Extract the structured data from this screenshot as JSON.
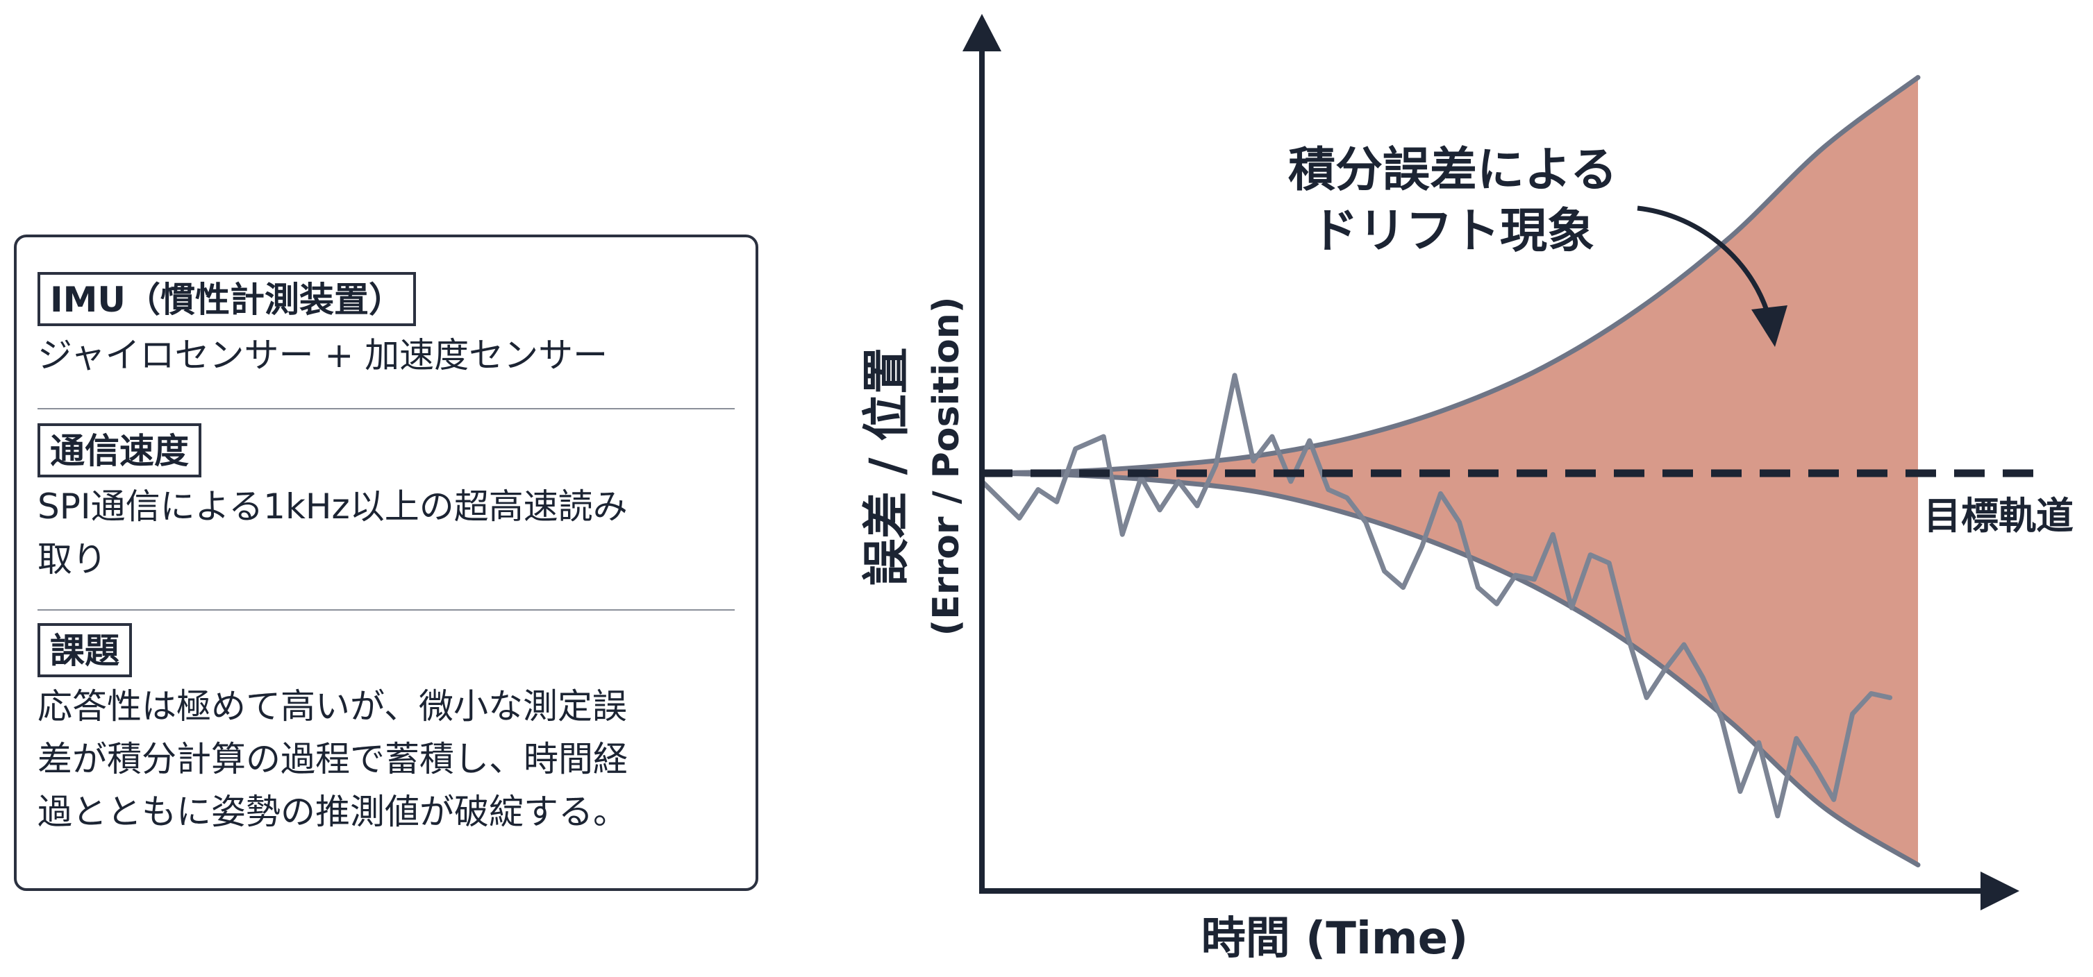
{
  "info_card": {
    "sections": [
      {
        "title": "IMU（慣性計測装置）",
        "body": [
          "ジャイロセンサー + 加速度センサー"
        ]
      },
      {
        "title": "通信速度",
        "body": [
          "SPI通信による1kHz以上の超高速読み",
          "取り"
        ]
      },
      {
        "title": "課題",
        "body": [
          "応答性は極めて高いが、微小な測定誤",
          "差が積分計算の過程で蓄積し、時間経",
          "過とともに姿勢の推測値が破綻する。"
        ]
      }
    ]
  },
  "chart_data": {
    "type": "line",
    "y_label_ja": "誤差 / 位置",
    "y_label_en": "(Error / Position)",
    "x_label": "時間 (Time)",
    "annotation": [
      "積分誤差による",
      "ドリフト現象"
    ],
    "reference_line_label": "目標軌道",
    "reference_value": 0,
    "colors": {
      "drift_fill": "#d89a8a",
      "envelope": "#6e7586",
      "noisy_signal": "#7c8494",
      "axis": "#1c2433",
      "reference": "#1c2433"
    },
    "xlim": [
      0,
      100
    ],
    "ylim": [
      -100,
      100
    ],
    "envelope_upper": [
      [
        0,
        0
      ],
      [
        10,
        0.5
      ],
      [
        20,
        2
      ],
      [
        30,
        4.5
      ],
      [
        40,
        9
      ],
      [
        50,
        16
      ],
      [
        60,
        26
      ],
      [
        70,
        40
      ],
      [
        80,
        58
      ],
      [
        90,
        80
      ],
      [
        100,
        97
      ]
    ],
    "envelope_lower": [
      [
        0,
        0
      ],
      [
        10,
        -0.5
      ],
      [
        20,
        -2
      ],
      [
        30,
        -4.8
      ],
      [
        40,
        -10.5
      ],
      [
        50,
        -18.5
      ],
      [
        60,
        -29
      ],
      [
        70,
        -43
      ],
      [
        80,
        -61
      ],
      [
        90,
        -82
      ],
      [
        100,
        -96
      ]
    ],
    "noisy_signal": [
      [
        0,
        -2
      ],
      [
        4,
        -11
      ],
      [
        6,
        -4
      ],
      [
        8,
        -7
      ],
      [
        10,
        6
      ],
      [
        13,
        9
      ],
      [
        15,
        -15
      ],
      [
        17,
        -1
      ],
      [
        19,
        -9
      ],
      [
        21,
        -2
      ],
      [
        23,
        -8
      ],
      [
        25,
        2
      ],
      [
        27,
        24
      ],
      [
        29,
        3
      ],
      [
        31,
        9
      ],
      [
        33,
        -2
      ],
      [
        35,
        8
      ],
      [
        37,
        -4
      ],
      [
        39,
        -6
      ],
      [
        41,
        -12
      ],
      [
        43,
        -24
      ],
      [
        45,
        -28
      ],
      [
        47,
        -18
      ],
      [
        49,
        -5
      ],
      [
        51,
        -12
      ],
      [
        53,
        -28
      ],
      [
        55,
        -32
      ],
      [
        57,
        -25
      ],
      [
        59,
        -26
      ],
      [
        61,
        -15
      ],
      [
        63,
        -33
      ],
      [
        65,
        -20
      ],
      [
        67,
        -22
      ],
      [
        69,
        -40
      ],
      [
        71,
        -55
      ],
      [
        73,
        -48
      ],
      [
        75,
        -42
      ],
      [
        77,
        -50
      ],
      [
        79,
        -60
      ],
      [
        81,
        -78
      ],
      [
        83,
        -66
      ],
      [
        85,
        -84
      ],
      [
        87,
        -65
      ],
      [
        89,
        -72
      ],
      [
        91,
        -80
      ],
      [
        93,
        -59
      ],
      [
        95,
        -54
      ],
      [
        97,
        -55
      ]
    ]
  }
}
